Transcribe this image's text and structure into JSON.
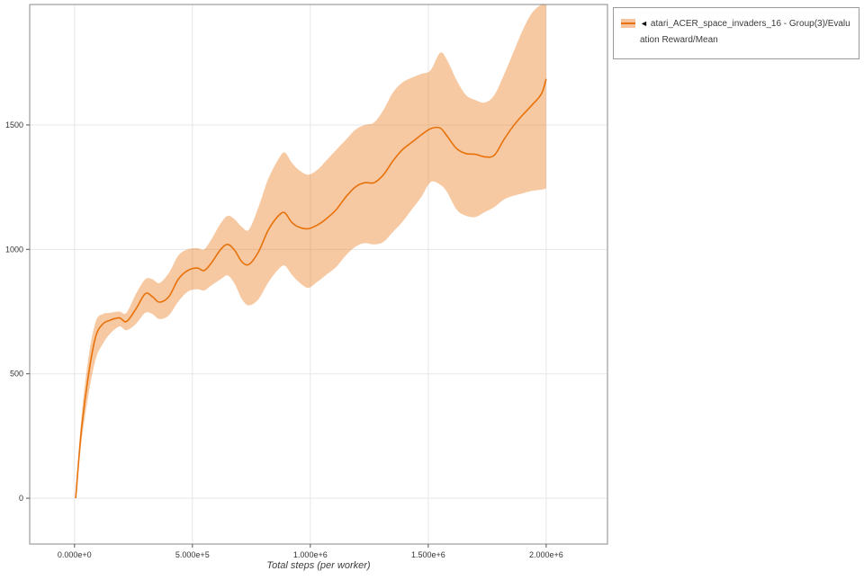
{
  "chart_data": {
    "type": "line",
    "title": "",
    "xlabel": "Total steps (per worker)",
    "ylabel": "",
    "grid": true,
    "legend_position": "top-right",
    "legend": {
      "collapse_icon": "◄"
    },
    "series": [
      {
        "name": "atari_ACER_space_invaders_16 - Group(3)/Evaluation Reward/Mean",
        "color": "#e8710a",
        "band_color": "#f5c49e",
        "band_opacity": 0.38
      }
    ],
    "xlim": [
      -190000,
      2260000
    ],
    "ylim": [
      -184,
      1984
    ],
    "x_ticks": [
      {
        "value": 0,
        "label": "0.000e+0"
      },
      {
        "value": 500000,
        "label": "5.000e+5"
      },
      {
        "value": 1000000,
        "label": "1.000e+6"
      },
      {
        "value": 1500000,
        "label": "1.500e+6"
      },
      {
        "value": 2000000,
        "label": "2.000e+6"
      }
    ],
    "y_ticks": [
      {
        "value": 0,
        "label": "0"
      },
      {
        "value": 500,
        "label": "500"
      },
      {
        "value": 1000,
        "label": "1000"
      },
      {
        "value": 1500,
        "label": "1500"
      }
    ],
    "x": [
      5000,
      30000,
      60000,
      90000,
      120000,
      150000,
      190000,
      220000,
      260000,
      300000,
      330000,
      360000,
      400000,
      440000,
      480000,
      520000,
      550000,
      580000,
      620000,
      650000,
      680000,
      710000,
      740000,
      780000,
      820000,
      860000,
      890000,
      920000,
      950000,
      990000,
      1030000,
      1070000,
      1110000,
      1150000,
      1190000,
      1230000,
      1270000,
      1310000,
      1350000,
      1390000,
      1430000,
      1470000,
      1510000,
      1550000,
      1580000,
      1620000,
      1660000,
      1700000,
      1740000,
      1780000,
      1820000,
      1860000,
      1900000,
      1940000,
      1980000,
      2000000
    ],
    "mean": [
      0,
      280,
      500,
      650,
      700,
      715,
      725,
      710,
      760,
      822,
      810,
      788,
      810,
      880,
      915,
      925,
      915,
      945,
      1000,
      1020,
      995,
      950,
      940,
      990,
      1075,
      1130,
      1148,
      1110,
      1090,
      1083,
      1098,
      1125,
      1160,
      1210,
      1250,
      1268,
      1268,
      1300,
      1355,
      1400,
      1430,
      1460,
      1485,
      1488,
      1455,
      1405,
      1385,
      1382,
      1372,
      1378,
      1440,
      1495,
      1540,
      1580,
      1625,
      1685
    ],
    "lower": [
      0,
      230,
      420,
      560,
      620,
      660,
      690,
      675,
      700,
      745,
      740,
      720,
      735,
      790,
      830,
      840,
      835,
      855,
      880,
      895,
      860,
      800,
      775,
      800,
      865,
      915,
      935,
      900,
      870,
      845,
      870,
      900,
      930,
      975,
      1010,
      1025,
      1020,
      1030,
      1070,
      1110,
      1160,
      1210,
      1270,
      1260,
      1230,
      1160,
      1135,
      1130,
      1150,
      1170,
      1200,
      1215,
      1225,
      1235,
      1240,
      1245
    ],
    "upper": [
      0,
      330,
      570,
      710,
      740,
      745,
      750,
      745,
      820,
      880,
      880,
      865,
      905,
      975,
      1000,
      1005,
      1000,
      1040,
      1105,
      1135,
      1120,
      1090,
      1080,
      1170,
      1280,
      1355,
      1390,
      1350,
      1320,
      1300,
      1320,
      1360,
      1400,
      1440,
      1480,
      1500,
      1510,
      1560,
      1630,
      1670,
      1690,
      1705,
      1720,
      1790,
      1760,
      1680,
      1620,
      1600,
      1590,
      1620,
      1700,
      1790,
      1880,
      1950,
      1990,
      2010
    ]
  }
}
